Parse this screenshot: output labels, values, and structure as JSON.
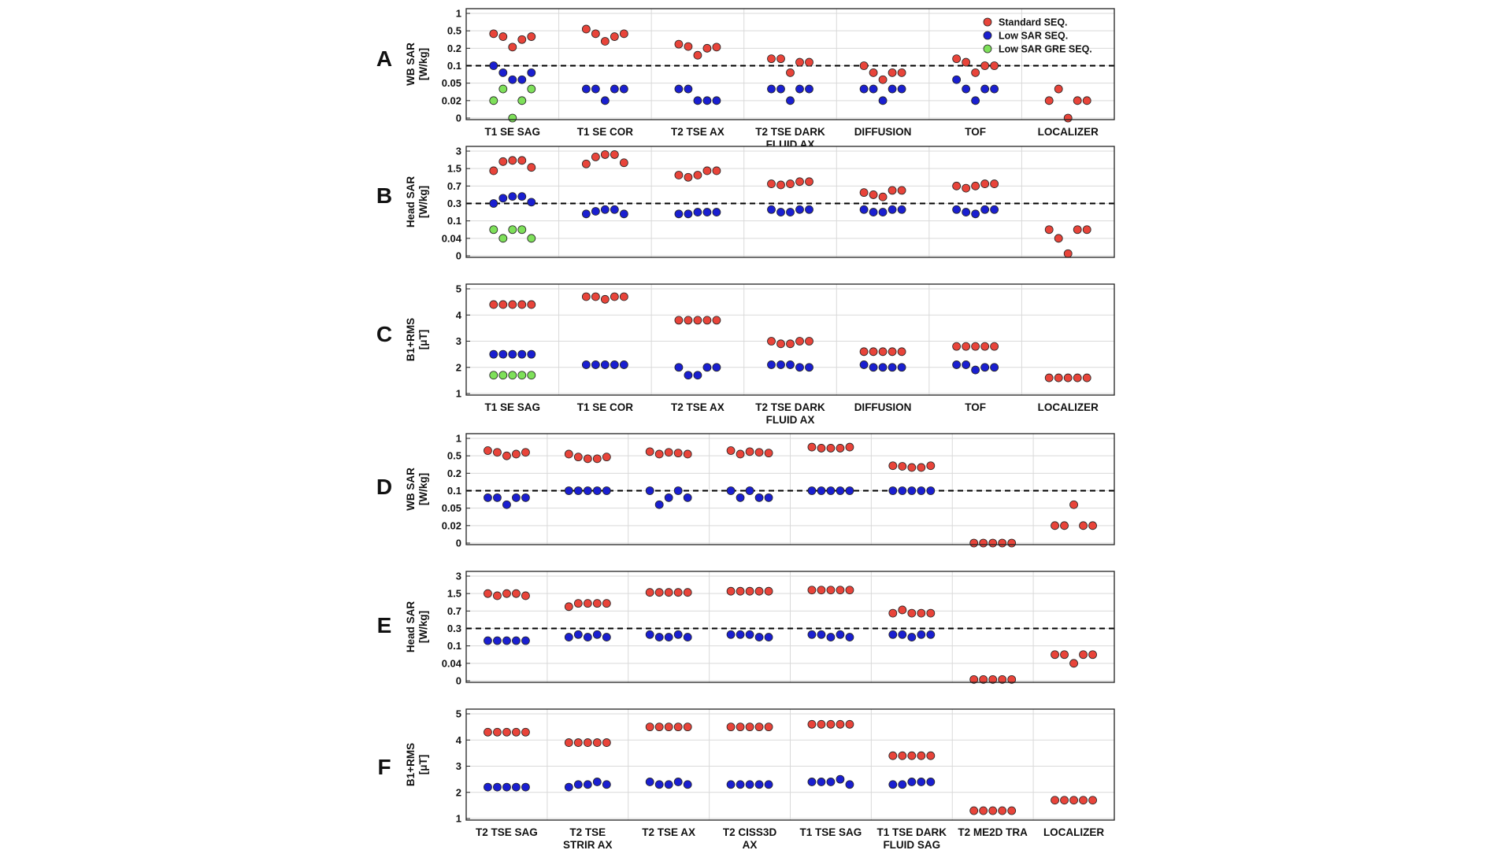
{
  "colors": {
    "standard": "#e8443a",
    "low_sar": "#1a1fd0",
    "low_sar_gre": "#7ee05a",
    "threshold": "#000000",
    "grid": "#d9d9d9"
  },
  "legend": {
    "placement": "top-right of panel A",
    "entries": [
      {
        "key": "standard",
        "label": "Standard SEQ."
      },
      {
        "key": "low_sar",
        "label": "Low SAR SEQ."
      },
      {
        "key": "low_sar_gre",
        "label": "Low SAR GRE SEQ."
      }
    ]
  },
  "chart_data": [
    {
      "panel": "A",
      "type": "scatter",
      "ylabel_lines": [
        "WB SAR",
        "[W/kg]"
      ],
      "y_ticks": [
        "0",
        "0.02",
        "0.05",
        "0.1",
        "0.2",
        "0.5",
        "1"
      ],
      "threshold": "0.1",
      "categories": [
        [
          "T1 SE SAG"
        ],
        [
          "T1 SE COR"
        ],
        [
          "T2 TSE AX"
        ],
        [
          "T2 TSE DARK",
          "FLUID AX"
        ],
        [
          "DIFFUSION"
        ],
        [
          "TOF"
        ],
        [
          "LOCALIZER"
        ]
      ],
      "show_category_labels": true,
      "series": [
        {
          "name": "Standard SEQ.",
          "key": "standard",
          "values": [
            [
              0.45,
              0.4,
              0.22,
              0.35,
              0.4
            ],
            [
              0.55,
              0.45,
              0.32,
              0.4,
              0.45
            ],
            [
              0.27,
              0.23,
              0.16,
              0.2,
              0.22
            ],
            [
              0.14,
              0.14,
              0.08,
              0.12,
              0.12
            ],
            [
              0.1,
              0.08,
              0.06,
              0.08,
              0.08
            ],
            [
              0.14,
              0.12,
              0.08,
              0.1,
              0.1
            ],
            [
              0.02,
              0.04,
              0,
              0.02,
              0.02
            ]
          ]
        },
        {
          "name": "Low SAR SEQ.",
          "key": "low_sar",
          "values": [
            [
              0.1,
              0.08,
              0.06,
              0.06,
              0.08
            ],
            [
              0.04,
              0.04,
              0.02,
              0.04,
              0.04
            ],
            [
              0.04,
              0.04,
              0.02,
              0.02,
              0.02
            ],
            [
              0.04,
              0.04,
              0.02,
              0.04,
              0.04
            ],
            [
              0.04,
              0.04,
              0.02,
              0.04,
              0.04
            ],
            [
              0.06,
              0.04,
              0.02,
              0.04,
              0.04
            ],
            null
          ]
        },
        {
          "name": "Low SAR GRE SEQ.",
          "key": "low_sar_gre",
          "values": [
            [
              0.02,
              0.04,
              0,
              0.02,
              0.04
            ],
            null,
            null,
            null,
            null,
            null,
            null
          ]
        }
      ]
    },
    {
      "panel": "B",
      "type": "scatter",
      "ylabel_lines": [
        "Head SAR",
        "[W/kg]"
      ],
      "y_ticks": [
        "0",
        "0.04",
        "0.1",
        "0.3",
        "0.7",
        "1.5",
        "3"
      ],
      "threshold": "0.3",
      "categories": [
        [
          "T1 SE SAG"
        ],
        [
          "T1 SE COR"
        ],
        [
          "T2 TSE AX"
        ],
        [
          "T2 TSE DARK",
          "FLUID AX"
        ],
        [
          "DIFFUSION"
        ],
        [
          "TOF"
        ],
        [
          "LOCALIZER"
        ]
      ],
      "show_category_labels": false,
      "series": [
        {
          "name": "Standard SEQ.",
          "key": "standard",
          "values": [
            [
              1.4,
              2.1,
              2.2,
              2.2,
              1.6
            ],
            [
              1.9,
              2.5,
              2.7,
              2.7,
              2.0
            ],
            [
              1.2,
              1.1,
              1.2,
              1.4,
              1.4
            ],
            [
              0.8,
              0.75,
              0.8,
              0.9,
              0.9
            ],
            [
              0.55,
              0.5,
              0.45,
              0.6,
              0.6
            ],
            [
              0.7,
              0.65,
              0.7,
              0.8,
              0.8
            ],
            [
              0.07,
              0.04,
              0.005,
              0.07,
              0.07
            ]
          ]
        },
        {
          "name": "Low SAR SEQ.",
          "key": "low_sar",
          "values": [
            [
              0.3,
              0.42,
              0.46,
              0.46,
              0.33
            ],
            [
              0.18,
              0.21,
              0.23,
              0.23,
              0.18
            ],
            [
              0.18,
              0.18,
              0.2,
              0.2,
              0.2
            ],
            [
              0.23,
              0.2,
              0.2,
              0.23,
              0.23
            ],
            [
              0.23,
              0.2,
              0.2,
              0.23,
              0.23
            ],
            [
              0.23,
              0.2,
              0.18,
              0.23,
              0.23
            ],
            null
          ]
        },
        {
          "name": "Low SAR GRE SEQ.",
          "key": "low_sar_gre",
          "values": [
            [
              0.07,
              0.04,
              0.07,
              0.07,
              0.04
            ],
            null,
            null,
            null,
            null,
            null,
            null
          ]
        }
      ]
    },
    {
      "panel": "C",
      "type": "scatter",
      "ylabel_lines": [
        "B1+RMS",
        "[μT]"
      ],
      "y_ticks": [
        "1",
        "2",
        "3",
        "4",
        "5"
      ],
      "ylim": [
        1,
        5
      ],
      "categories": [
        [
          "T1 SE SAG"
        ],
        [
          "T1 SE COR"
        ],
        [
          "T2 TSE AX"
        ],
        [
          "T2 TSE DARK",
          "FLUID AX"
        ],
        [
          "DIFFUSION"
        ],
        [
          "TOF"
        ],
        [
          "LOCALIZER"
        ]
      ],
      "show_category_labels": true,
      "series": [
        {
          "name": "Standard SEQ.",
          "key": "standard",
          "values": [
            [
              4.4,
              4.4,
              4.4,
              4.4,
              4.4
            ],
            [
              4.7,
              4.7,
              4.6,
              4.7,
              4.7
            ],
            [
              3.8,
              3.8,
              3.8,
              3.8,
              3.8
            ],
            [
              3.0,
              2.9,
              2.9,
              3.0,
              3.0
            ],
            [
              2.6,
              2.6,
              2.6,
              2.6,
              2.6
            ],
            [
              2.8,
              2.8,
              2.8,
              2.8,
              2.8
            ],
            [
              1.6,
              1.6,
              1.6,
              1.6,
              1.6
            ]
          ]
        },
        {
          "name": "Low SAR SEQ.",
          "key": "low_sar",
          "values": [
            [
              2.5,
              2.5,
              2.5,
              2.5,
              2.5
            ],
            [
              2.1,
              2.1,
              2.1,
              2.1,
              2.1
            ],
            [
              2.0,
              1.7,
              1.7,
              2.0,
              2.0
            ],
            [
              2.1,
              2.1,
              2.1,
              2.0,
              2.0
            ],
            [
              2.1,
              2.0,
              2.0,
              2.0,
              2.0
            ],
            [
              2.1,
              2.1,
              1.9,
              2.0,
              2.0
            ],
            null
          ]
        },
        {
          "name": "Low SAR GRE SEQ.",
          "key": "low_sar_gre",
          "values": [
            [
              1.7,
              1.7,
              1.7,
              1.7,
              1.7
            ],
            null,
            null,
            null,
            null,
            null,
            null
          ]
        }
      ]
    },
    {
      "panel": "D",
      "type": "scatter",
      "ylabel_lines": [
        "WB SAR",
        "[W/kg]"
      ],
      "y_ticks": [
        "0",
        "0.02",
        "0.05",
        "0.1",
        "0.2",
        "0.5",
        "1"
      ],
      "threshold": "0.1",
      "categories": [
        [
          "T2 TSE SAG"
        ],
        [
          "T2 TSE",
          "STRIR AX"
        ],
        [
          "T2 TSE AX"
        ],
        [
          "T2 CISS3D",
          "AX"
        ],
        [
          "T1 TSE SAG"
        ],
        [
          "T1 TSE DARK",
          "FLUID SAG"
        ],
        [
          "T2 ME2D TRA"
        ],
        [
          "LOCALIZER"
        ]
      ],
      "show_category_labels": false,
      "series": [
        {
          "name": "Standard SEQ.",
          "key": "standard",
          "values": [
            [
              0.65,
              0.6,
              0.5,
              0.55,
              0.6
            ],
            [
              0.55,
              0.48,
              0.45,
              0.45,
              0.48
            ],
            [
              0.62,
              0.55,
              0.6,
              0.58,
              0.55
            ],
            [
              0.65,
              0.55,
              0.62,
              0.6,
              0.58
            ],
            [
              0.75,
              0.72,
              0.72,
              0.72,
              0.75
            ],
            [
              0.33,
              0.32,
              0.3,
              0.3,
              0.33
            ],
            [
              0,
              0,
              0,
              0,
              0
            ],
            [
              0.02,
              0.02,
              0.06,
              0.02,
              0.02
            ]
          ]
        },
        {
          "name": "Low SAR SEQ.",
          "key": "low_sar",
          "values": [
            [
              0.08,
              0.08,
              0.06,
              0.08,
              0.08
            ],
            [
              0.1,
              0.1,
              0.1,
              0.1,
              0.1
            ],
            [
              0.1,
              0.06,
              0.08,
              0.1,
              0.08
            ],
            [
              0.1,
              0.08,
              0.1,
              0.08,
              0.08
            ],
            [
              0.1,
              0.1,
              0.1,
              0.1,
              0.1
            ],
            [
              0.1,
              0.1,
              0.1,
              0.1,
              0.1
            ],
            null,
            null
          ]
        }
      ]
    },
    {
      "panel": "E",
      "type": "scatter",
      "ylabel_lines": [
        "Head SAR",
        "[W/kg]"
      ],
      "y_ticks": [
        "0",
        "0.04",
        "0.1",
        "0.3",
        "0.7",
        "1.5",
        "3"
      ],
      "threshold": "0.3",
      "categories": [
        [
          "T2 TSE SAG"
        ],
        [
          "T2 TSE",
          "STRIR AX"
        ],
        [
          "T2 TSE AX"
        ],
        [
          "T2 CISS3D",
          "AX"
        ],
        [
          "T1 TSE SAG"
        ],
        [
          "T1 TSE DARK",
          "FLUID SAG"
        ],
        [
          "T2 ME2D TRA"
        ],
        [
          "LOCALIZER"
        ]
      ],
      "show_category_labels": false,
      "series": [
        {
          "name": "Standard SEQ.",
          "key": "standard",
          "values": [
            [
              1.5,
              1.4,
              1.5,
              1.5,
              1.4
            ],
            [
              0.9,
              1.05,
              1.05,
              1.05,
              1.05
            ],
            [
              1.6,
              1.6,
              1.6,
              1.6,
              1.6
            ],
            [
              1.7,
              1.7,
              1.7,
              1.7,
              1.7
            ],
            [
              1.8,
              1.8,
              1.8,
              1.8,
              1.8
            ],
            [
              0.65,
              0.75,
              0.65,
              0.65,
              0.65
            ],
            [
              0.003,
              0.003,
              0.003,
              0.003,
              0.003
            ],
            [
              0.07,
              0.07,
              0.04,
              0.07,
              0.07
            ]
          ]
        },
        {
          "name": "Low SAR SEQ.",
          "key": "low_sar",
          "values": [
            [
              0.16,
              0.16,
              0.16,
              0.16,
              0.16
            ],
            [
              0.2,
              0.23,
              0.2,
              0.23,
              0.2
            ],
            [
              0.23,
              0.2,
              0.2,
              0.23,
              0.2
            ],
            [
              0.23,
              0.23,
              0.23,
              0.2,
              0.2
            ],
            [
              0.23,
              0.23,
              0.2,
              0.23,
              0.2
            ],
            [
              0.23,
              0.23,
              0.2,
              0.23,
              0.23
            ],
            null,
            null
          ]
        }
      ]
    },
    {
      "panel": "F",
      "type": "scatter",
      "ylabel_lines": [
        "B1+RMS",
        "[μT]"
      ],
      "y_ticks": [
        "1",
        "2",
        "3",
        "4",
        "5"
      ],
      "ylim": [
        1,
        5
      ],
      "categories": [
        [
          "T2 TSE SAG"
        ],
        [
          "T2 TSE",
          "STRIR AX"
        ],
        [
          "T2 TSE AX"
        ],
        [
          "T2 CISS3D",
          "AX"
        ],
        [
          "T1 TSE SAG"
        ],
        [
          "T1 TSE DARK",
          "FLUID SAG"
        ],
        [
          "T2 ME2D TRA"
        ],
        [
          "LOCALIZER"
        ]
      ],
      "show_category_labels": true,
      "series": [
        {
          "name": "Standard SEQ.",
          "key": "standard",
          "values": [
            [
              4.3,
              4.3,
              4.3,
              4.3,
              4.3
            ],
            [
              3.9,
              3.9,
              3.9,
              3.9,
              3.9
            ],
            [
              4.5,
              4.5,
              4.5,
              4.5,
              4.5
            ],
            [
              4.5,
              4.5,
              4.5,
              4.5,
              4.5
            ],
            [
              4.6,
              4.6,
              4.6,
              4.6,
              4.6
            ],
            [
              3.4,
              3.4,
              3.4,
              3.4,
              3.4
            ],
            [
              1.3,
              1.3,
              1.3,
              1.3,
              1.3
            ],
            [
              1.7,
              1.7,
              1.7,
              1.7,
              1.7
            ]
          ]
        },
        {
          "name": "Low SAR SEQ.",
          "key": "low_sar",
          "values": [
            [
              2.2,
              2.2,
              2.2,
              2.2,
              2.2
            ],
            [
              2.2,
              2.3,
              2.3,
              2.4,
              2.3
            ],
            [
              2.4,
              2.3,
              2.3,
              2.4,
              2.3
            ],
            [
              2.3,
              2.3,
              2.3,
              2.3,
              2.3
            ],
            [
              2.4,
              2.4,
              2.4,
              2.5,
              2.3
            ],
            [
              2.3,
              2.3,
              2.4,
              2.4,
              2.4
            ],
            null,
            null
          ]
        }
      ]
    }
  ]
}
